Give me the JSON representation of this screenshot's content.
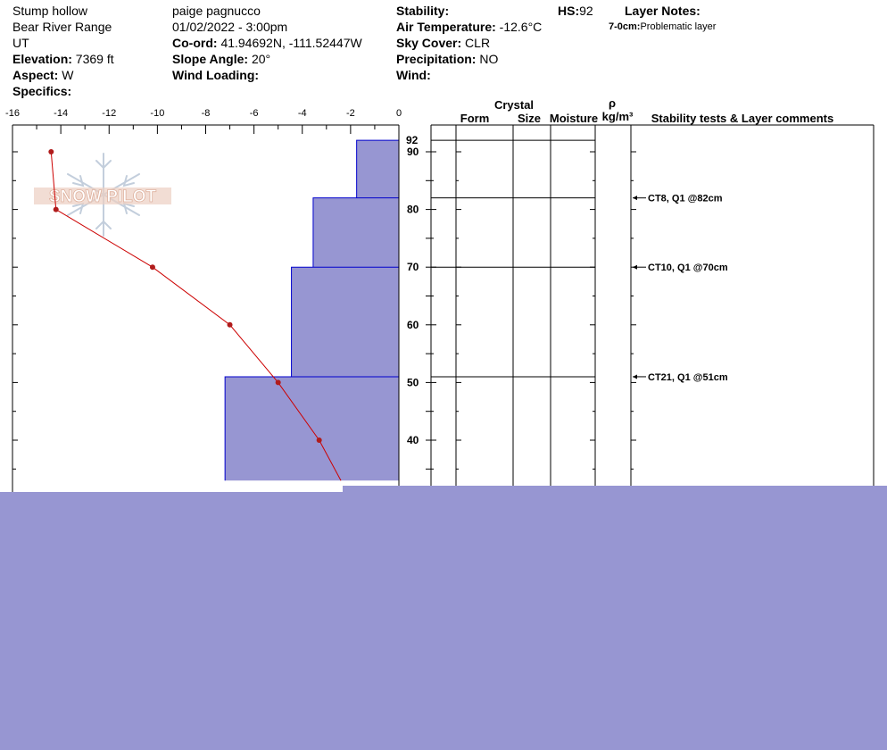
{
  "header": {
    "location": "Stump hollow",
    "range": "Bear River Range",
    "state": "UT",
    "elevation_label": "Elevation:",
    "elevation_value": "7369 ft",
    "aspect_label": "Aspect:",
    "aspect_value": "W",
    "specifics_label": "Specifics:",
    "observer": "paige pagnucco",
    "datetime": "01/02/2022 - 3:00pm",
    "coord_label": "Co-ord:",
    "coord_value": "41.94692N, -111.52447W",
    "slope_label": "Slope Angle:",
    "slope_value": "20°",
    "wind_loading_label": "Wind Loading:",
    "stability_label": "Stability:",
    "air_temp_label": "Air Temperature:",
    "air_temp_value": "-12.6°C",
    "sky_label": "Sky Cover:",
    "sky_value": "CLR",
    "precip_label": "Precipitation:",
    "precip_value": "NO",
    "wind_label": "Wind:",
    "hs_label": "HS:",
    "hs_value": "92",
    "layer_notes_label": "Layer Notes:",
    "layer_note_range": "7-0cm:",
    "layer_note_text": "Problematic layer"
  },
  "watermark": "SNOW PILOT",
  "columns": {
    "crystal": "Crystal",
    "form": "Form",
    "size": "Size",
    "moisture": "Moisture",
    "rho": "ρ",
    "density_unit": "kg/m³",
    "comments": "Stability tests & Layer comments"
  },
  "chart_data": {
    "type": "line",
    "x_ticks": [
      "-16",
      "-14",
      "-12",
      "-10",
      "-8",
      "-6",
      "-4",
      "-2",
      "0"
    ],
    "xlim": [
      -16,
      0
    ],
    "y_ticks": [
      "40",
      "50",
      "60",
      "70",
      "80",
      "90"
    ],
    "snow_height_label": "92",
    "ylim": [
      33,
      92
    ],
    "temperature_profile": [
      {
        "depth": 90,
        "temp": -14.4
      },
      {
        "depth": 80,
        "temp": -14.2
      },
      {
        "depth": 70,
        "temp": -10.2
      },
      {
        "depth": 60,
        "temp": -7.0
      },
      {
        "depth": 50,
        "temp": -5.0
      },
      {
        "depth": 40,
        "temp": -3.3
      },
      {
        "depth": 33,
        "temp": -2.4
      }
    ],
    "hardness_layers": [
      {
        "top": 92,
        "bottom": 82,
        "hardness": -1.75
      },
      {
        "top": 82,
        "bottom": 70,
        "hardness": -3.55
      },
      {
        "top": 70,
        "bottom": 51,
        "hardness": -4.45
      },
      {
        "top": 51,
        "bottom": 33,
        "hardness": -7.2
      }
    ],
    "layer_boundaries": [
      92,
      82,
      70,
      51
    ],
    "stability_tests": [
      {
        "depth": 82,
        "label": "CT8, Q1 @82cm"
      },
      {
        "depth": 70,
        "label": "CT10, Q1 @70cm"
      },
      {
        "depth": 51,
        "label": "CT21, Q1 @51cm"
      }
    ],
    "colors": {
      "hardness_fill": "#9796d2",
      "hardness_stroke": "#0000cc",
      "temp_line": "#cc0000",
      "temp_point": "#b01c1c"
    }
  },
  "overlay_color": "#9796d2"
}
